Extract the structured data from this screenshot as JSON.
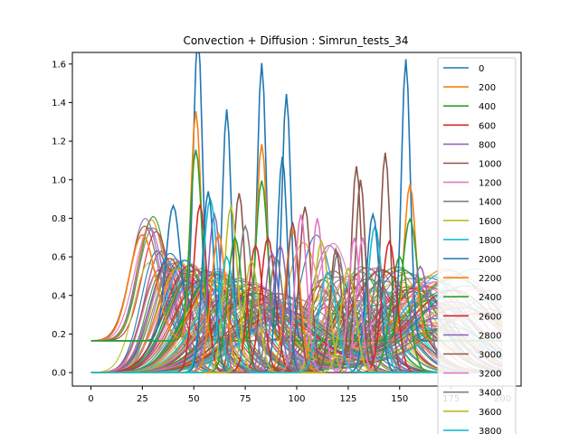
{
  "chart_data": {
    "type": "line",
    "title": "Convection + Diffusion : Simrun_tests_34",
    "xlabel": "",
    "ylabel": "",
    "xlim": [
      -9,
      209
    ],
    "ylim": [
      -0.07,
      1.66
    ],
    "x_ticks": [
      0,
      25,
      50,
      75,
      100,
      125,
      150,
      175,
      200
    ],
    "x_tick_labels": [
      "0",
      "25",
      "50",
      "75",
      "100",
      "125",
      "150",
      "175",
      "200"
    ],
    "y_ticks": [
      0.0,
      0.2,
      0.4,
      0.6,
      0.8,
      1.0,
      1.2,
      1.4,
      1.6
    ],
    "y_tick_labels": [
      "0.0",
      "0.2",
      "0.4",
      "0.6",
      "0.8",
      "1.0",
      "1.2",
      "1.4",
      "1.6"
    ],
    "grid": false,
    "legend_position": "upper-right",
    "n_points": 201,
    "background_series_count": 120,
    "series": [
      {
        "name": "0",
        "color": "#1f77b4",
        "peaks": [
          [
            52,
            1.58,
            3.2
          ],
          [
            66,
            1.2,
            3
          ],
          [
            83,
            1.44,
            3
          ],
          [
            95,
            1.28,
            3
          ],
          [
            153,
            1.46,
            3
          ],
          [
            40,
            0.7,
            5
          ]
        ],
        "baseline": 0.165
      },
      {
        "name": "200",
        "color": "#ff7f0e",
        "peaks": [
          [
            51,
            1.19,
            3.5
          ],
          [
            83,
            1.02,
            3.5
          ],
          [
            155,
            0.81,
            4
          ],
          [
            25,
            0.55,
            9
          ]
        ],
        "baseline": 0.165
      },
      {
        "name": "400",
        "color": "#2ca02c",
        "peaks": [
          [
            51,
            0.99,
            4
          ],
          [
            83,
            0.83,
            4
          ],
          [
            155,
            0.63,
            5
          ]
        ],
        "baseline": 0.165
      },
      {
        "name": "600",
        "color": "#d62728",
        "peaks": [
          [
            53,
            0.87,
            4.5
          ],
          [
            86,
            0.7,
            5
          ]
        ],
        "baseline": 0.0
      },
      {
        "name": "800",
        "color": "#9467bd",
        "peaks": [
          [
            60,
            0.82,
            4.5
          ],
          [
            92,
            0.66,
            5
          ]
        ],
        "baseline": 0.0
      },
      {
        "name": "1000",
        "color": "#8c564b",
        "peaks": [
          [
            72,
            0.93,
            4
          ],
          [
            104,
            0.86,
            4
          ],
          [
            129,
            1.07,
            3.5
          ],
          [
            143,
            1.14,
            3.5
          ]
        ],
        "baseline": 0.0
      },
      {
        "name": "1200",
        "color": "#e377c2",
        "peaks": [
          [
            110,
            0.8,
            4
          ],
          [
            132,
            0.7,
            4
          ]
        ],
        "baseline": 0.0
      },
      {
        "name": "1400",
        "color": "#7f7f7f",
        "peaks": [
          [
            75,
            0.76,
            5
          ],
          [
            120,
            0.62,
            5
          ]
        ],
        "baseline": 0.0
      },
      {
        "name": "1600",
        "color": "#bcbd22",
        "peaks": [
          [
            68,
            0.86,
            4.5
          ],
          [
            112,
            0.68,
            5
          ]
        ],
        "baseline": 0.0
      },
      {
        "name": "1800",
        "color": "#17becf",
        "peaks": [
          [
            58,
            0.9,
            5
          ],
          [
            138,
            0.76,
            5
          ]
        ],
        "baseline": 0.0
      },
      {
        "name": "2000",
        "color": "#1f77b4",
        "peaks": [
          [
            57,
            0.94,
            4
          ],
          [
            93,
            1.12,
            3.5
          ],
          [
            137,
            0.82,
            4.5
          ]
        ],
        "baseline": 0.0
      },
      {
        "name": "2200",
        "color": "#ff7f0e",
        "peaks": [
          [
            62,
            0.72,
            5
          ],
          [
            98,
            0.74,
            5
          ]
        ],
        "baseline": 0.0
      },
      {
        "name": "2400",
        "color": "#2ca02c",
        "peaks": [
          [
            70,
            0.7,
            5
          ],
          [
            150,
            0.6,
            6
          ]
        ],
        "baseline": 0.0
      },
      {
        "name": "2600",
        "color": "#d62728",
        "peaks": [
          [
            80,
            0.66,
            5
          ],
          [
            145,
            0.68,
            5
          ]
        ],
        "baseline": 0.0
      },
      {
        "name": "2800",
        "color": "#9467bd",
        "peaks": [
          [
            88,
            0.62,
            5
          ],
          [
            160,
            0.55,
            6
          ]
        ],
        "baseline": 0.0
      },
      {
        "name": "3000",
        "color": "#8c564b",
        "peaks": [
          [
            98,
            0.78,
            4
          ],
          [
            131,
            1.0,
            3.5
          ],
          [
            119,
            0.64,
            4
          ]
        ],
        "baseline": 0.0
      },
      {
        "name": "3200",
        "color": "#e377c2",
        "peaks": [
          [
            102,
            0.82,
            4
          ],
          [
            128,
            0.7,
            4
          ]
        ],
        "baseline": 0.0
      },
      {
        "name": "3400",
        "color": "#7f7f7f",
        "peaks": [
          [
            90,
            0.6,
            5
          ],
          [
            140,
            0.56,
            5
          ]
        ],
        "baseline": 0.0
      },
      {
        "name": "3600",
        "color": "#bcbd22",
        "peaks": [
          [
            78,
            0.58,
            5
          ],
          [
            125,
            0.54,
            5
          ]
        ],
        "baseline": 0.0
      },
      {
        "name": "3800",
        "color": "#17becf",
        "peaks": [
          [
            66,
            0.6,
            5
          ],
          [
            115,
            0.52,
            6
          ]
        ],
        "baseline": 0.0
      }
    ]
  }
}
